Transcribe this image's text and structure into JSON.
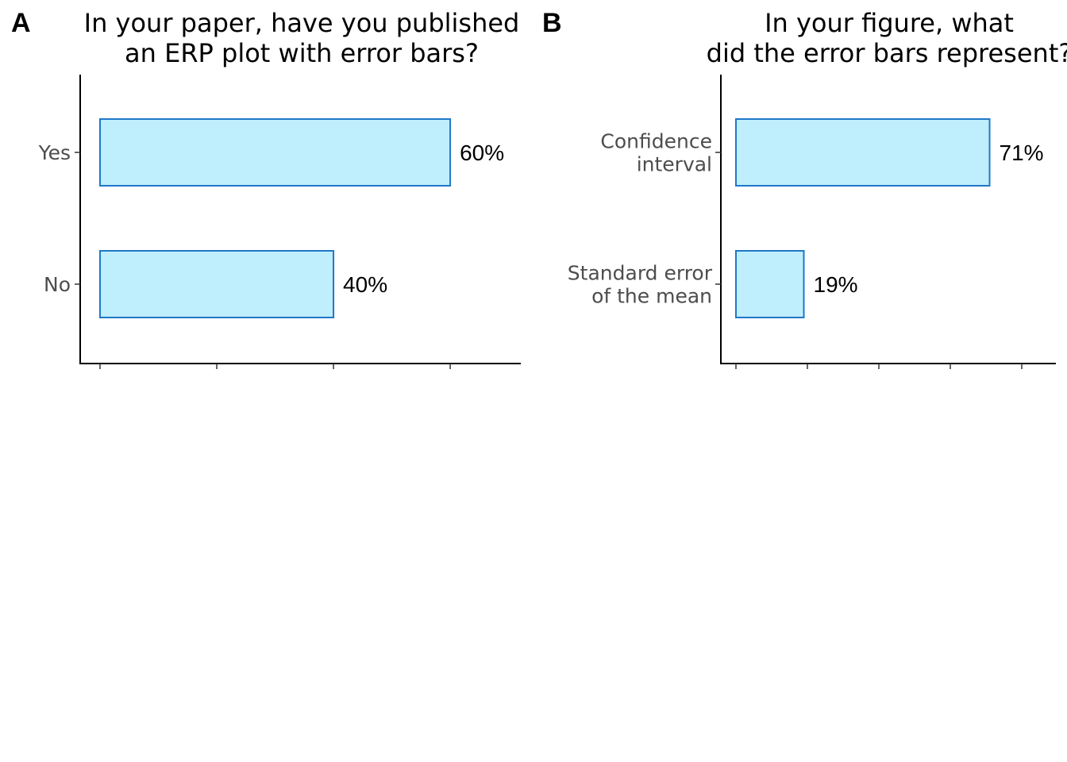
{
  "figure": {
    "panels": [
      {
        "letter": "A",
        "title_lines": [
          "In your paper, have you published",
          "an ERP plot with error bars?"
        ]
      },
      {
        "letter": "B",
        "title_lines": [
          "In your figure, what",
          "did the error bars represent?"
        ]
      }
    ]
  },
  "colors": {
    "bar_fill": "#bfeefc",
    "bar_stroke": "#1f78c8"
  },
  "chart_data": [
    {
      "type": "bar",
      "orientation": "horizontal",
      "title": "In your paper, have you published an ERP plot with error bars?",
      "categories": [
        [
          "Yes"
        ],
        [
          "No"
        ]
      ],
      "values": [
        60,
        40
      ],
      "value_labels": [
        "60%",
        "40%"
      ],
      "xlim": [
        0,
        74
      ],
      "x_ticks": [
        0,
        20,
        40,
        60
      ],
      "grid": false,
      "legend": "none"
    },
    {
      "type": "bar",
      "orientation": "horizontal",
      "title": "In your figure, what did the error bars represent?",
      "categories": [
        [
          "Confidence",
          "interval"
        ],
        [
          "Standard error",
          "of the mean"
        ]
      ],
      "values": [
        71,
        19
      ],
      "value_labels": [
        "71%",
        "19%"
      ],
      "xlim": [
        0,
        90
      ],
      "x_ticks": [
        0,
        20,
        40,
        60,
        80
      ],
      "grid": false,
      "legend": "none"
    }
  ]
}
